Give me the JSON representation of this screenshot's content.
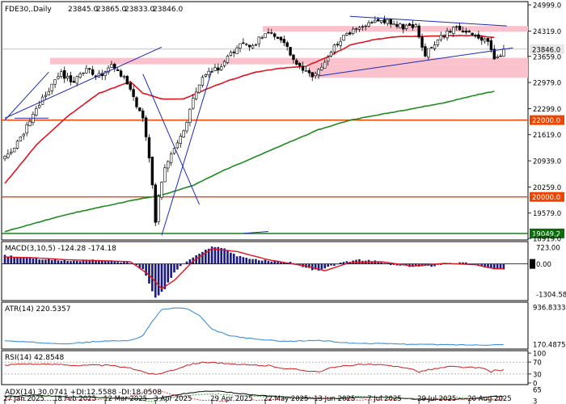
{
  "colors": {
    "background": "#ffffff",
    "candle": "#000000",
    "zone": "#f9c2cc",
    "ma_red": "#e0141e",
    "ma_green": "#1f8a1f",
    "trend_blue": "#1c2bb5",
    "level_line": "#ee4400",
    "support_line": "#0a6e0a",
    "macd_hist": "#1a1a80",
    "macd_signal": "#e0141e",
    "atr": "#3c8fd6",
    "rsi": "#d21e1e",
    "adx_main": "#000000",
    "adx_plus": "#1f8a1f",
    "adx_minus": "#e0141e"
  },
  "chart_data": [
    {
      "panel": "price",
      "type": "candlestick",
      "title": "FDE30,.Daily",
      "ohlc_header": [
        "23845.0",
        "23865.0",
        "23833.0",
        "23846.0"
      ],
      "last_price_label": "23846.0",
      "y_tick_labels": [
        "24999.0",
        "24319.0",
        "23846.0",
        "23659.0",
        "22979.0",
        "22299.0",
        "22000.0",
        "21619.0",
        "20939.0",
        "20259.0",
        "20000.0",
        "19579.0",
        "19049.2",
        "18919.0"
      ],
      "ylim": [
        18900,
        25000
      ],
      "x_tick_labels": [
        "27 Jan 2025",
        "18 Feb 2025",
        "12 Mar 2025",
        "3 Apr 2025",
        "29 Apr 2025",
        "22 May 2025",
        "13 Jun 2025",
        "7 Jul 2025",
        "29 Jul 2025",
        "20 Aug 2025"
      ],
      "x_tick_index": [
        0,
        16,
        32,
        48,
        66,
        83,
        99,
        116,
        132,
        148
      ],
      "anchors": [
        [
          0,
          21000
        ],
        [
          5,
          21500
        ],
        [
          10,
          22300
        ],
        [
          14,
          22800
        ],
        [
          18,
          23200
        ],
        [
          22,
          23000
        ],
        [
          26,
          23300
        ],
        [
          30,
          23150
        ],
        [
          34,
          23400
        ],
        [
          37,
          23200
        ],
        [
          40,
          22800
        ],
        [
          44,
          22000
        ],
        [
          46,
          21000
        ],
        [
          47,
          20300
        ],
        [
          48,
          19300
        ],
        [
          49,
          20000
        ],
        [
          51,
          20800
        ],
        [
          54,
          21200
        ],
        [
          57,
          21700
        ],
        [
          60,
          22500
        ],
        [
          63,
          23100
        ],
        [
          66,
          23300
        ],
        [
          69,
          23400
        ],
        [
          72,
          23700
        ],
        [
          75,
          24000
        ],
        [
          78,
          23900
        ],
        [
          81,
          24100
        ],
        [
          84,
          24300
        ],
        [
          87,
          24150
        ],
        [
          90,
          23900
        ],
        [
          93,
          23400
        ],
        [
          96,
          23250
        ],
        [
          99,
          23150
        ],
        [
          103,
          23700
        ],
        [
          107,
          24100
        ],
        [
          111,
          24300
        ],
        [
          115,
          24450
        ],
        [
          119,
          24600
        ],
        [
          123,
          24550
        ],
        [
          127,
          24400
        ],
        [
          131,
          24450
        ],
        [
          134,
          23700
        ],
        [
          137,
          24000
        ],
        [
          140,
          24200
        ],
        [
          144,
          24400
        ],
        [
          148,
          24300
        ],
        [
          151,
          24150
        ],
        [
          154,
          24000
        ],
        [
          156,
          23600
        ],
        [
          158,
          23700
        ],
        [
          159,
          23846
        ]
      ],
      "series": [
        {
          "name": "",
          "type": "ma",
          "anchors": [
            [
              0,
              20350
            ],
            [
              10,
              21350
            ],
            [
              20,
              22100
            ],
            [
              30,
              22700
            ],
            [
              40,
              23000
            ],
            [
              44,
              22700
            ],
            [
              50,
              22550
            ],
            [
              57,
              22550
            ],
            [
              64,
              22800
            ],
            [
              72,
              23050
            ],
            [
              80,
              23250
            ],
            [
              88,
              23350
            ],
            [
              96,
              23400
            ],
            [
              103,
              23650
            ],
            [
              110,
              23950
            ],
            [
              118,
              24100
            ],
            [
              126,
              24180
            ],
            [
              134,
              24180
            ],
            [
              142,
              24200
            ],
            [
              150,
              24200
            ],
            [
              156,
              24150
            ]
          ]
        },
        {
          "name": "",
          "type": "ma",
          "anchors": [
            [
              0,
              19100
            ],
            [
              20,
              19550
            ],
            [
              40,
              19900
            ],
            [
              50,
              20050
            ],
            [
              60,
              20300
            ],
            [
              70,
              20700
            ],
            [
              80,
              21050
            ],
            [
              90,
              21400
            ],
            [
              100,
              21750
            ],
            [
              110,
              22000
            ],
            [
              120,
              22150
            ],
            [
              130,
              22300
            ],
            [
              140,
              22450
            ],
            [
              150,
              22650
            ],
            [
              156,
              22750
            ]
          ]
        }
      ],
      "zones": [
        [
          23450,
          23620
        ],
        [
          24300,
          24450
        ],
        [
          23100,
          23450
        ]
      ],
      "levels": [
        "22000.0",
        "20000.0",
        "19049.2"
      ],
      "trendlines": [
        {
          "from": [
            110,
            24700
          ],
          "to": [
            160,
            24450
          ]
        },
        {
          "from": [
            100,
            23150
          ],
          "to": [
            162,
            23880
          ]
        },
        {
          "from": [
            14,
            23250
          ],
          "to": [
            0,
            22000
          ]
        },
        {
          "from": [
            0,
            22050
          ],
          "to": [
            50,
            23900
          ]
        },
        {
          "from": [
            44,
            23200
          ],
          "to": [
            62,
            19800
          ]
        },
        {
          "from": [
            50,
            19000
          ],
          "to": [
            66,
            23300
          ]
        },
        {
          "from": [
            76,
            19049
          ],
          "to": [
            84,
            19100
          ]
        }
      ],
      "grid": false
    },
    {
      "panel": "macd",
      "type": "bar",
      "title": "MACD(3,10,5) -124.28 -174.18",
      "y_tick_labels": [
        "723.00",
        "0.00",
        "-1304.58"
      ],
      "ylim": [
        -1304.58,
        723
      ],
      "hist_anchors": [
        [
          0,
          300
        ],
        [
          5,
          250
        ],
        [
          10,
          200
        ],
        [
          16,
          150
        ],
        [
          22,
          100
        ],
        [
          28,
          150
        ],
        [
          34,
          100
        ],
        [
          40,
          50
        ],
        [
          44,
          -200
        ],
        [
          46,
          -700
        ],
        [
          48,
          -1250
        ],
        [
          51,
          -900
        ],
        [
          54,
          -300
        ],
        [
          58,
          100
        ],
        [
          62,
          350
        ],
        [
          66,
          650
        ],
        [
          70,
          550
        ],
        [
          74,
          300
        ],
        [
          80,
          150
        ],
        [
          86,
          100
        ],
        [
          92,
          50
        ],
        [
          96,
          -150
        ],
        [
          100,
          -250
        ],
        [
          106,
          0
        ],
        [
          112,
          150
        ],
        [
          118,
          100
        ],
        [
          124,
          -50
        ],
        [
          130,
          -100
        ],
        [
          136,
          -80
        ],
        [
          142,
          50
        ],
        [
          148,
          30
        ],
        [
          152,
          -80
        ],
        [
          156,
          -180
        ]
      ],
      "signal_anchors": [
        [
          0,
          250
        ],
        [
          10,
          220
        ],
        [
          20,
          150
        ],
        [
          30,
          120
        ],
        [
          40,
          80
        ],
        [
          46,
          -400
        ],
        [
          50,
          -900
        ],
        [
          54,
          -600
        ],
        [
          60,
          100
        ],
        [
          66,
          550
        ],
        [
          74,
          450
        ],
        [
          84,
          150
        ],
        [
          96,
          -80
        ],
        [
          102,
          -250
        ],
        [
          110,
          50
        ],
        [
          120,
          80
        ],
        [
          130,
          -80
        ],
        [
          140,
          20
        ],
        [
          150,
          -30
        ],
        [
          156,
          -174
        ]
      ]
    },
    {
      "panel": "atr",
      "type": "line",
      "title": "ATR(14) 220.5357",
      "y_tick_labels": [
        "936.8333",
        "170.4875"
      ],
      "ylim": [
        170.4875,
        936.8333
      ],
      "anchors": [
        [
          0,
          290
        ],
        [
          10,
          260
        ],
        [
          20,
          240
        ],
        [
          30,
          280
        ],
        [
          40,
          300
        ],
        [
          44,
          380
        ],
        [
          47,
          650
        ],
        [
          50,
          860
        ],
        [
          54,
          890
        ],
        [
          58,
          880
        ],
        [
          62,
          750
        ],
        [
          66,
          500
        ],
        [
          72,
          380
        ],
        [
          80,
          320
        ],
        [
          90,
          280
        ],
        [
          100,
          300
        ],
        [
          110,
          250
        ],
        [
          120,
          240
        ],
        [
          130,
          230
        ],
        [
          140,
          220
        ],
        [
          150,
          215
        ],
        [
          156,
          220
        ]
      ]
    },
    {
      "panel": "rsi",
      "type": "line",
      "title": "RSI(14) 42.8548",
      "y_tick_labels": [
        "100",
        "70",
        "30",
        "0"
      ],
      "ylim": [
        0,
        100
      ],
      "levels": [
        70,
        30
      ],
      "anchors": [
        [
          0,
          60
        ],
        [
          6,
          65
        ],
        [
          12,
          62
        ],
        [
          18,
          63
        ],
        [
          24,
          58
        ],
        [
          30,
          60
        ],
        [
          36,
          56
        ],
        [
          42,
          45
        ],
        [
          46,
          32
        ],
        [
          48,
          28
        ],
        [
          50,
          34
        ],
        [
          54,
          45
        ],
        [
          58,
          60
        ],
        [
          62,
          68
        ],
        [
          66,
          70
        ],
        [
          72,
          62
        ],
        [
          78,
          60
        ],
        [
          84,
          58
        ],
        [
          90,
          48
        ],
        [
          96,
          42
        ],
        [
          100,
          38
        ],
        [
          104,
          50
        ],
        [
          110,
          60
        ],
        [
          116,
          62
        ],
        [
          122,
          58
        ],
        [
          128,
          52
        ],
        [
          132,
          38
        ],
        [
          136,
          46
        ],
        [
          142,
          55
        ],
        [
          148,
          52
        ],
        [
          152,
          50
        ],
        [
          155,
          36
        ],
        [
          156,
          42.85
        ]
      ]
    },
    {
      "panel": "adx",
      "type": "line",
      "title": "ADX(14) 30.0741 +DI:12.5588 -DI:18.0508",
      "y_tick_labels": [
        "65",
        "3"
      ],
      "ylim": [
        3,
        65
      ],
      "series": [
        {
          "name": "ADX",
          "anchors": [
            [
              0,
              30
            ],
            [
              10,
              35
            ],
            [
              20,
              28
            ],
            [
              30,
              25
            ],
            [
              40,
              20
            ],
            [
              46,
              18
            ],
            [
              50,
              25
            ],
            [
              56,
              40
            ],
            [
              62,
              50
            ],
            [
              66,
              55
            ],
            [
              72,
              48
            ],
            [
              80,
              35
            ],
            [
              88,
              28
            ],
            [
              96,
              22
            ],
            [
              104,
              20
            ],
            [
              112,
              25
            ],
            [
              120,
              28
            ],
            [
              128,
              20
            ],
            [
              136,
              15
            ],
            [
              144,
              18
            ],
            [
              150,
              22
            ],
            [
              156,
              30.07
            ]
          ]
        },
        {
          "name": "+DI",
          "anchors": [
            [
              0,
              25
            ],
            [
              10,
              30
            ],
            [
              20,
              28
            ],
            [
              30,
              25
            ],
            [
              40,
              18
            ],
            [
              46,
              8
            ],
            [
              50,
              12
            ],
            [
              56,
              30
            ],
            [
              62,
              38
            ],
            [
              68,
              40
            ],
            [
              76,
              32
            ],
            [
              86,
              28
            ],
            [
              96,
              18
            ],
            [
              104,
              22
            ],
            [
              112,
              30
            ],
            [
              120,
              26
            ],
            [
              128,
              20
            ],
            [
              136,
              22
            ],
            [
              144,
              25
            ],
            [
              150,
              18
            ],
            [
              156,
              12.56
            ]
          ]
        },
        {
          "name": "-DI",
          "anchors": [
            [
              0,
              15
            ],
            [
              10,
              12
            ],
            [
              20,
              14
            ],
            [
              30,
              16
            ],
            [
              40,
              28
            ],
            [
              46,
              55
            ],
            [
              50,
              52
            ],
            [
              56,
              30
            ],
            [
              62,
              15
            ],
            [
              68,
              10
            ],
            [
              76,
              12
            ],
            [
              86,
              15
            ],
            [
              96,
              28
            ],
            [
              104,
              22
            ],
            [
              112,
              14
            ],
            [
              120,
              15
            ],
            [
              128,
              20
            ],
            [
              136,
              18
            ],
            [
              144,
              16
            ],
            [
              150,
              18
            ],
            [
              156,
              18.05
            ]
          ]
        }
      ]
    }
  ]
}
